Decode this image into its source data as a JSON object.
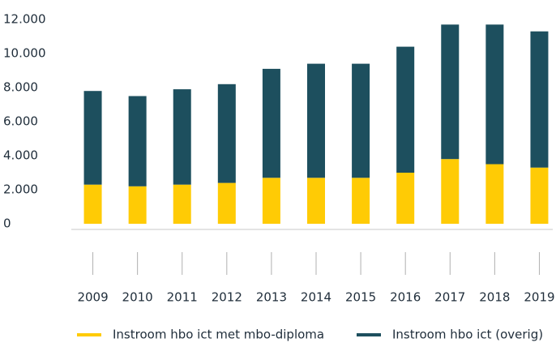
{
  "chart_data": {
    "type": "stacked_bar",
    "categories": [
      "2009",
      "2010",
      "2011",
      "2012",
      "2013",
      "2014",
      "2015",
      "2016",
      "2017",
      "2018",
      "2019"
    ],
    "series": [
      {
        "name": "Instroom hbo ict met mbo-diploma",
        "color": "#ffcb05",
        "values": [
          2300,
          2200,
          2300,
          2400,
          2700,
          2700,
          2700,
          3000,
          3800,
          3500,
          3300
        ]
      },
      {
        "name": "Instroom hbo ict (overig)",
        "color": "#1d4f5e",
        "values": [
          5500,
          5300,
          5600,
          5800,
          6400,
          6700,
          6700,
          7400,
          7900,
          8200,
          8000
        ]
      }
    ],
    "ylim": [
      0,
      12000
    ],
    "yticks": [
      {
        "value": 0,
        "label": "0"
      },
      {
        "value": 2000,
        "label": "2.000"
      },
      {
        "value": 4000,
        "label": "4.000"
      },
      {
        "value": 6000,
        "label": "6.000"
      },
      {
        "value": 8000,
        "label": "8.000"
      },
      {
        "value": 10000,
        "label": "10.000"
      },
      {
        "value": 12000,
        "label": "12.000"
      }
    ],
    "grid": false,
    "legend": "bottom"
  }
}
